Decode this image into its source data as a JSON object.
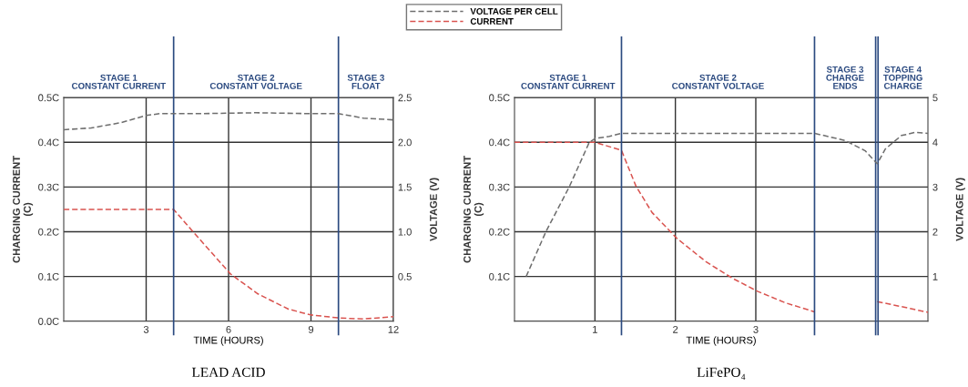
{
  "chart_data": [
    {
      "type": "line",
      "xlabel": "TIME (HOURS)",
      "ylabel": "CHARGING CURRENT\n(C)",
      "y2label": "VOLTAGE (V)",
      "series": [
        {
          "name": "VOLTAGE PER CELL",
          "color": "#6e6e6e",
          "axis": "y2",
          "x": [
            0,
            1,
            2.1,
            3,
            3.5,
            5,
            7,
            9,
            10,
            10.9,
            12
          ],
          "values": [
            2.14,
            2.16,
            2.22,
            2.3,
            2.32,
            2.32,
            2.33,
            2.32,
            2.32,
            2.27,
            2.25
          ]
        },
        {
          "name": "CURRENT",
          "color": "#d9534f",
          "x": [
            0,
            4,
            4.75,
            6.08,
            7.07,
            8.18,
            9,
            10.05,
            10.9,
            12
          ],
          "values": [
            0.25,
            0.25,
            0.197,
            0.105,
            0.061,
            0.027,
            0.014,
            0.007,
            0.005,
            0.01
          ]
        }
      ],
      "xlim": [
        0,
        12
      ],
      "xticks": [
        3,
        6,
        9,
        12
      ],
      "ylim": [
        0,
        0.5
      ],
      "yticks": [
        {
          "value": 0,
          "label": "0.0C"
        },
        {
          "value": 0.1,
          "label": "0.1C"
        },
        {
          "value": 0.2,
          "label": "0.2C"
        },
        {
          "value": 0.3,
          "label": "0.3C"
        },
        {
          "value": 0.4,
          "label": "0.4C"
        },
        {
          "value": 0.5,
          "label": "0.5C"
        }
      ],
      "y2lim": [
        0,
        2.5
      ],
      "y2ticks": [
        {
          "value": 0.5,
          "label": "0.5"
        },
        {
          "value": 1,
          "label": "1.0"
        },
        {
          "value": 1.5,
          "label": "1.5"
        },
        {
          "value": 2,
          "label": "2.0"
        },
        {
          "value": 2.5,
          "label": "2.5"
        }
      ],
      "ref_lines": [
        {
          "axis": "x",
          "value": 4,
          "color": "#2b4a80"
        },
        {
          "axis": "x",
          "value": 10,
          "color": "#2b4a80"
        }
      ],
      "annotations": [
        "STAGE 1\nCONSTANT CURRENT",
        "STAGE 2\nCONSTANT VOLTAGE",
        "STAGE 3\nFLOAT",
        "LEAD ACID"
      ],
      "grid": true,
      "legend": "top",
      "line_style": "dashed",
      "marker": "none"
    },
    {
      "type": "line",
      "xlabel": "TIME (HOURS)",
      "ylabel": "CHARGING CURRENT\n(C)",
      "y2label": "VOLTAGE (V)",
      "series": [
        {
          "color": "#6e6e6e",
          "axis": "y2",
          "x": [
            0.145,
            0.39,
            0.68,
            0.93,
            1.01,
            1.18,
            1.33,
            2,
            3,
            3.73,
            4.11,
            4.36,
            4.51,
            4.61,
            4.81,
            4.98,
            5.14
          ],
          "values": [
            1.0,
            2.0,
            3.0,
            4.0,
            4.09,
            4.13,
            4.2,
            4.2,
            4.2,
            4.2,
            4.04,
            3.81,
            3.52,
            3.85,
            4.15,
            4.22,
            4.2
          ]
        },
        {
          "color": "#d9534f",
          "x": [
            0,
            1,
            1.33,
            1.51,
            1.71,
            2.02,
            2.38,
            2.71,
            3.02,
            3.37,
            3.73,
            4.1,
            4.51,
            5.14
          ],
          "values": [
            0.4,
            0.4,
            0.382,
            0.302,
            0.243,
            0.185,
            0.133,
            0.096,
            0.067,
            0.041,
            0.021,
            null,
            0.044,
            0.02
          ]
        }
      ],
      "xlim": [
        0,
        5.14
      ],
      "xticks": [
        1,
        2,
        3
      ],
      "ylim": [
        0,
        0.5
      ],
      "yticks": [
        {
          "value": 0,
          "label": null
        },
        {
          "value": 0.1,
          "label": "0.1C"
        },
        {
          "value": 0.2,
          "label": "0.2C"
        },
        {
          "value": 0.3,
          "label": "0.3C"
        },
        {
          "value": 0.4,
          "label": "0.4C"
        },
        {
          "value": 0.5,
          "label": "0.5C"
        }
      ],
      "y2lim": [
        0,
        5
      ],
      "y2ticks": [
        1,
        2,
        3,
        4,
        5
      ],
      "ref_lines": [
        {
          "axis": "x",
          "value": 1.33,
          "color": "#2b4a80"
        },
        {
          "axis": "x",
          "value": 3.73,
          "color": "#2b4a80"
        },
        {
          "axis": "x",
          "value": 4.49,
          "color": "#2b4a80"
        },
        {
          "axis": "x",
          "value": 4.52,
          "color": "#2b4a80"
        }
      ],
      "annotations": [
        "STAGE 1\nCONSTANT CURRENT",
        "STAGE 2\nCONSTANT VOLTAGE",
        "STAGE 3\nCHARGE\nENDS",
        "STAGE 4\nTOPPING\nCHARGE",
        "LiFePO₄"
      ],
      "grid": true,
      "line_style": "dashed",
      "marker": "none"
    }
  ]
}
